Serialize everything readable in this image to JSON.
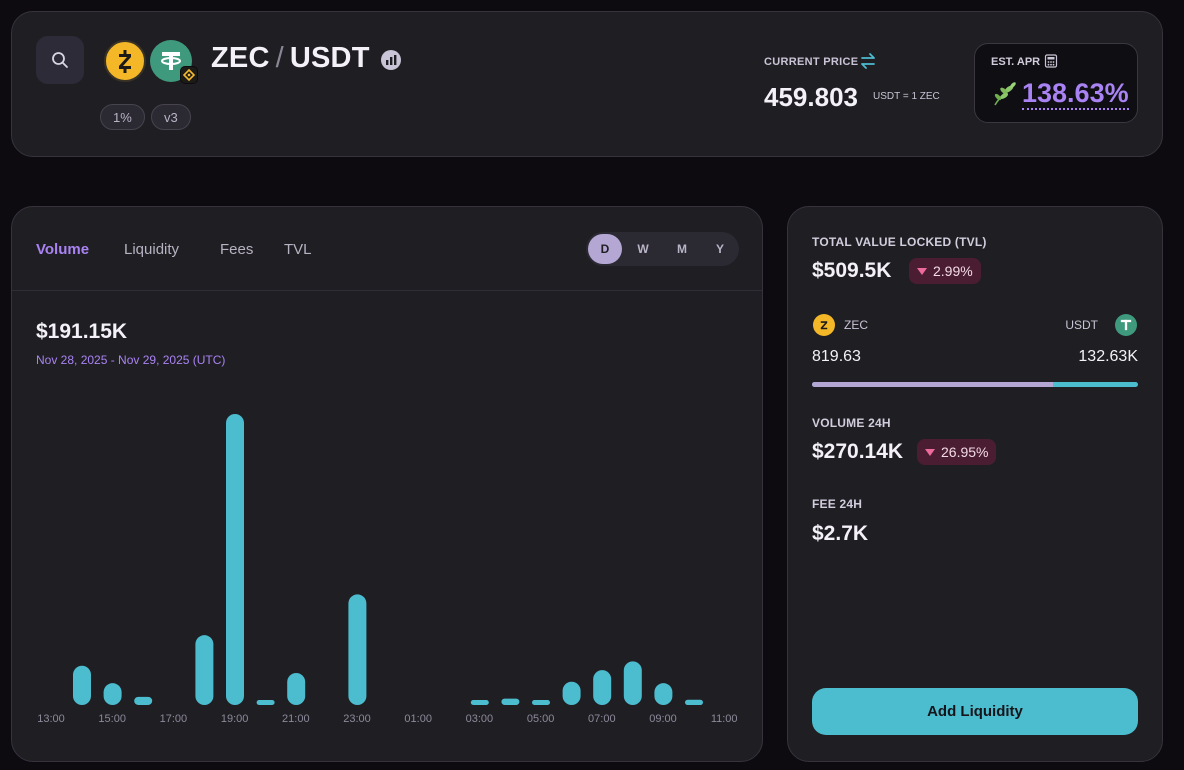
{
  "header": {
    "base_token": "ZEC",
    "separator": "/",
    "quote_token": "USDT",
    "fee_tier": "1%",
    "version": "v3",
    "current_price_label": "CURRENT PRICE",
    "current_price": "459.803",
    "price_unit": "USDT = 1 ZEC",
    "apr_label": "EST. APR",
    "apr_value": "138.63%"
  },
  "chart": {
    "tabs": [
      "Volume",
      "Liquidity",
      "Fees",
      "TVL"
    ],
    "active_tab": "Volume",
    "ranges": [
      "D",
      "W",
      "M",
      "Y"
    ],
    "active_range": "D",
    "total": "$191.15K",
    "date_range": "Nov 28, 2025 - Nov 29, 2025 (UTC)"
  },
  "chart_data": {
    "type": "bar",
    "categories": [
      "13:00",
      "14:00",
      "15:00",
      "16:00",
      "17:00",
      "18:00",
      "19:00",
      "20:00",
      "21:00",
      "22:00",
      "23:00",
      "00:00",
      "01:00",
      "02:00",
      "03:00",
      "04:00",
      "05:00",
      "06:00",
      "07:00",
      "08:00",
      "09:00",
      "10:00",
      "11:00"
    ],
    "values": [
      13.5,
      7.5,
      2.8,
      0,
      24,
      100,
      0.8,
      11,
      0,
      38,
      0,
      0,
      0,
      1.4,
      2.2,
      1.2,
      8,
      12,
      15,
      7.5,
      1.8,
      0,
      0
    ],
    "x_tick_labels": [
      "13:00",
      "15:00",
      "17:00",
      "19:00",
      "21:00",
      "23:00",
      "01:00",
      "03:00",
      "05:00",
      "07:00",
      "09:00",
      "11:00"
    ],
    "color": "#4cbccf",
    "grid": false,
    "ylim": [
      0,
      100
    ]
  },
  "stats": {
    "tvl_label": "TOTAL VALUE LOCKED (TVL)",
    "tvl_value": "$509.5K",
    "tvl_change": "2.99%",
    "token0_symbol": "ZEC",
    "token0_amount": "819.63",
    "token1_symbol": "USDT",
    "token1_amount": "132.63K",
    "token0_share": 0.74,
    "volume_label": "VOLUME 24H",
    "volume_value": "$270.14K",
    "volume_change": "26.95%",
    "fee_label": "FEE 24H",
    "fee_value": "$2.7K",
    "add_liquidity": "Add Liquidity"
  },
  "colors": {
    "accent_purple": "#a983f3",
    "accent_cyan": "#4cbccf",
    "negative": "#ee6a9c",
    "zec": "#f4b728",
    "usdt": "#3f9a7d"
  },
  "icons": [
    "search-icon",
    "zec-logo-icon",
    "usdt-logo-icon",
    "bnb-chain-icon",
    "chart-link-icon",
    "swap-icon",
    "calculator-icon",
    "leaf-icon"
  ]
}
